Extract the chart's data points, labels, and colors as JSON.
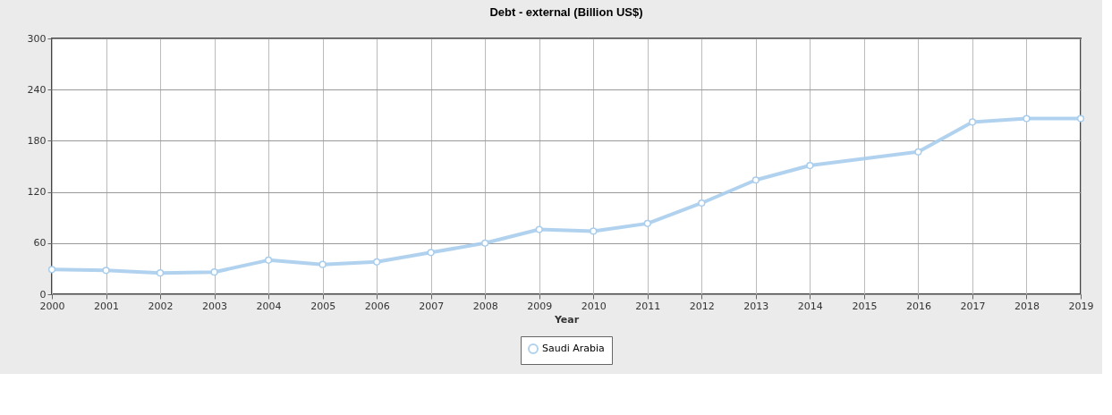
{
  "chart_data": {
    "type": "line",
    "title": "Debt - external (Billion US$)",
    "xlabel": "Year",
    "categories": [
      "2000",
      "2001",
      "2002",
      "2003",
      "2004",
      "2005",
      "2006",
      "2007",
      "2008",
      "2009",
      "2010",
      "2011",
      "2012",
      "2013",
      "2014",
      "2015",
      "2016",
      "2017",
      "2018",
      "2019"
    ],
    "series": [
      {
        "name": "Saudi Arabia",
        "color": "#a9cdec",
        "values": [
          29,
          28,
          25,
          26,
          40,
          35,
          38,
          49,
          60,
          76,
          74,
          83,
          107,
          134,
          151,
          null,
          167,
          202,
          206,
          206
        ]
      }
    ],
    "ylim": [
      0,
      300
    ],
    "yticks": [
      0,
      60,
      120,
      180,
      240,
      300
    ],
    "grid": true,
    "legend": "bottom",
    "marker": "circle",
    "line_style": "solid"
  }
}
